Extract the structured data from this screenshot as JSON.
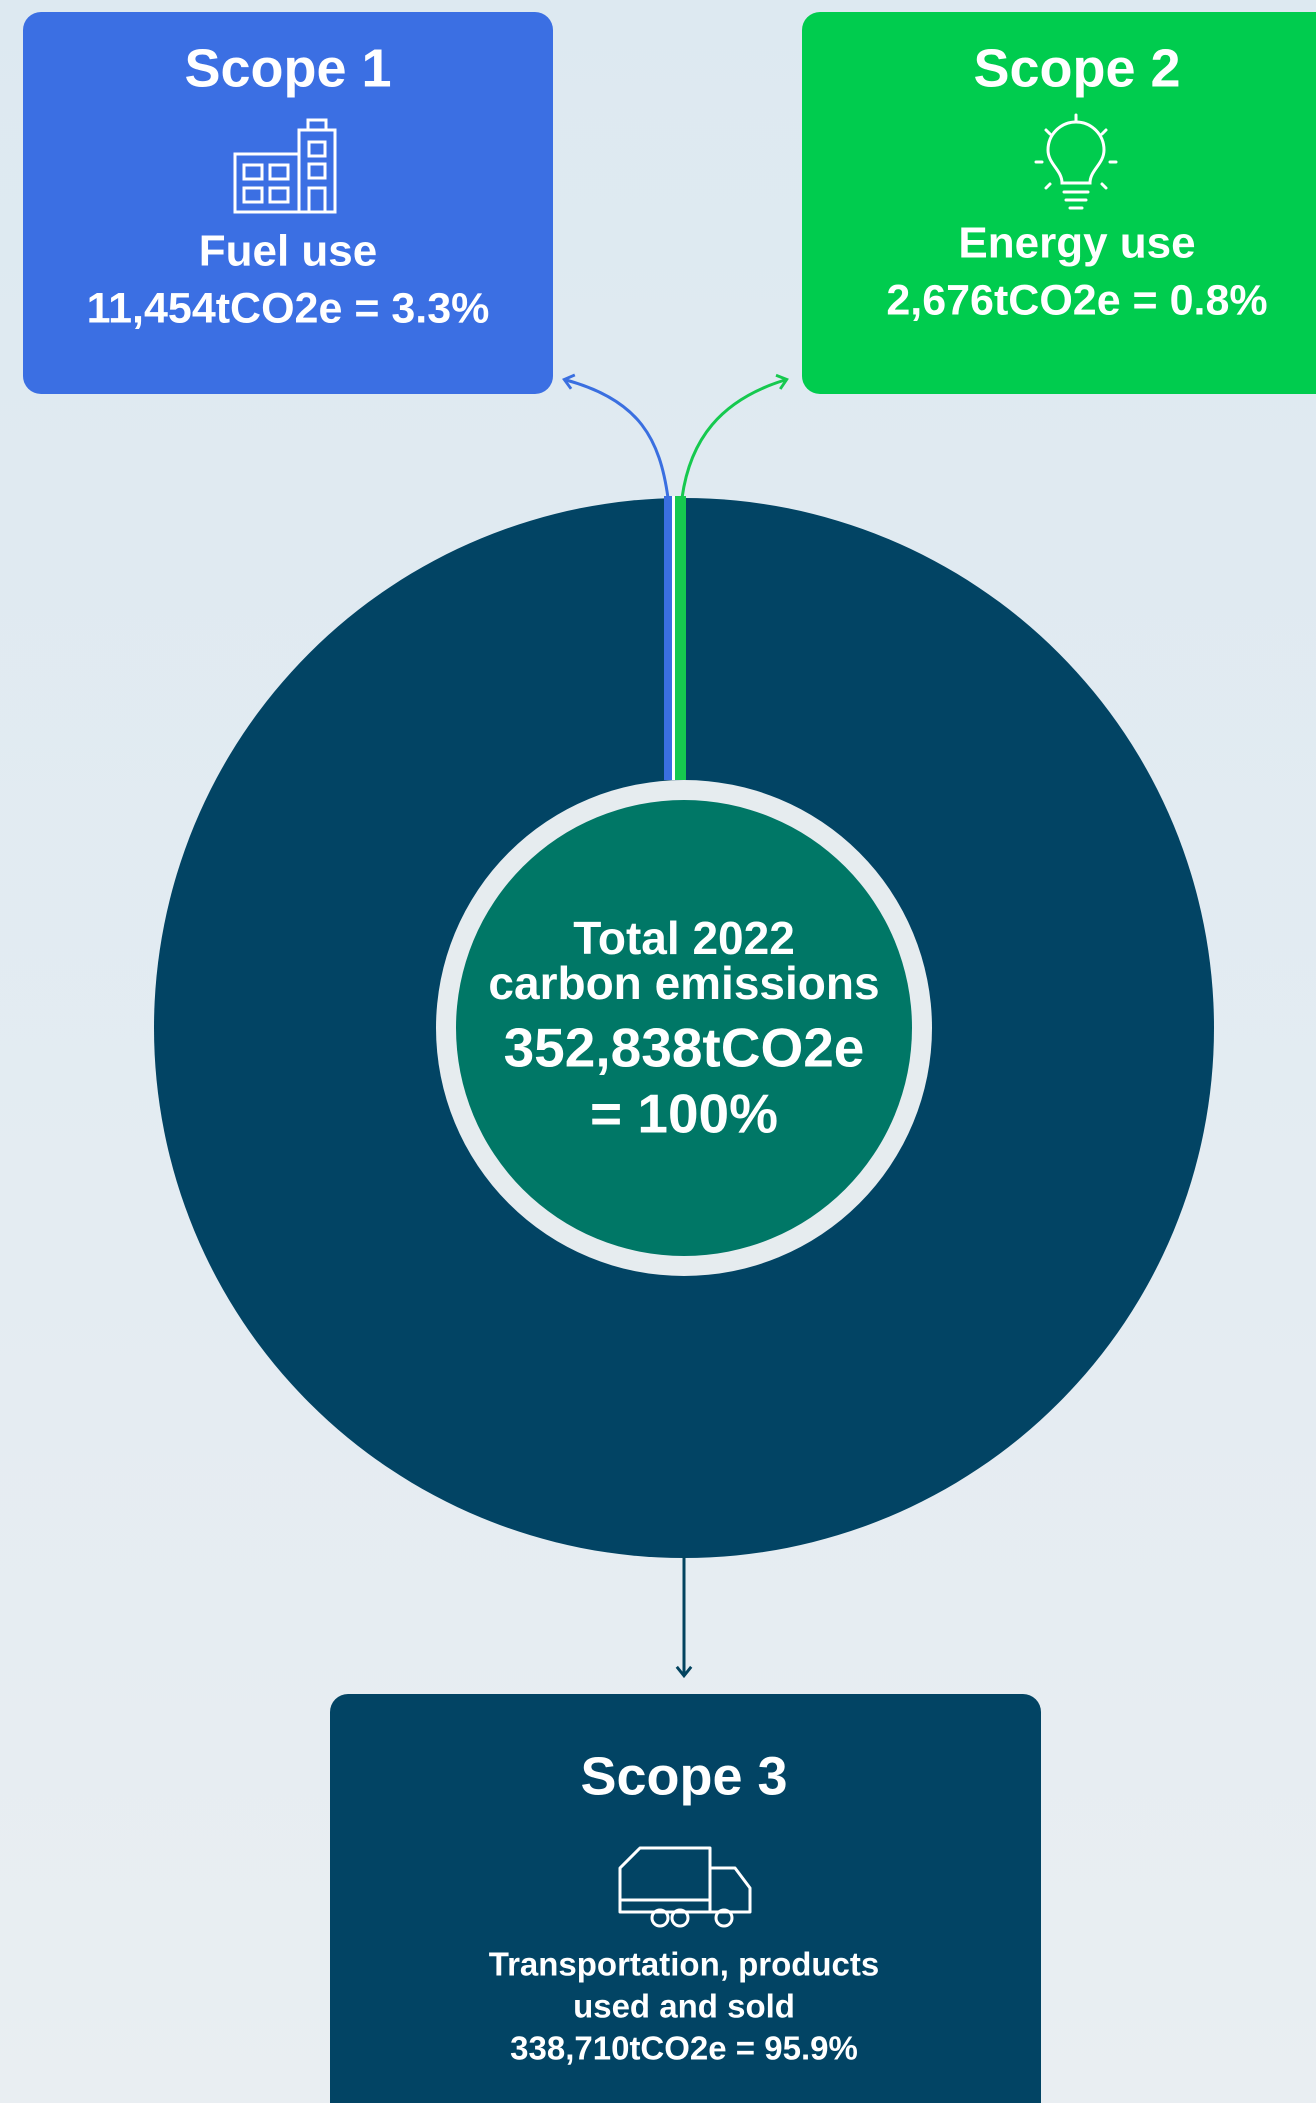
{
  "scopes": [
    {
      "title": "Scope 1",
      "label_lines": [
        "Fuel use"
      ],
      "value": "11,454tCO2e = 3.3%"
    },
    {
      "title": "Scope 2",
      "label_lines": [
        "Energy use"
      ],
      "value": "2,676tCO2e = 0.8%"
    },
    {
      "title": "Scope 3",
      "label_lines": [
        "Transportation, products",
        "used and sold"
      ],
      "value": "338,710tCO2e = 95.9%"
    }
  ],
  "center": {
    "lines": [
      "Total 2022",
      "carbon emissions"
    ],
    "value": "352,838tCO2e",
    "share": "= 100%"
  }
}
